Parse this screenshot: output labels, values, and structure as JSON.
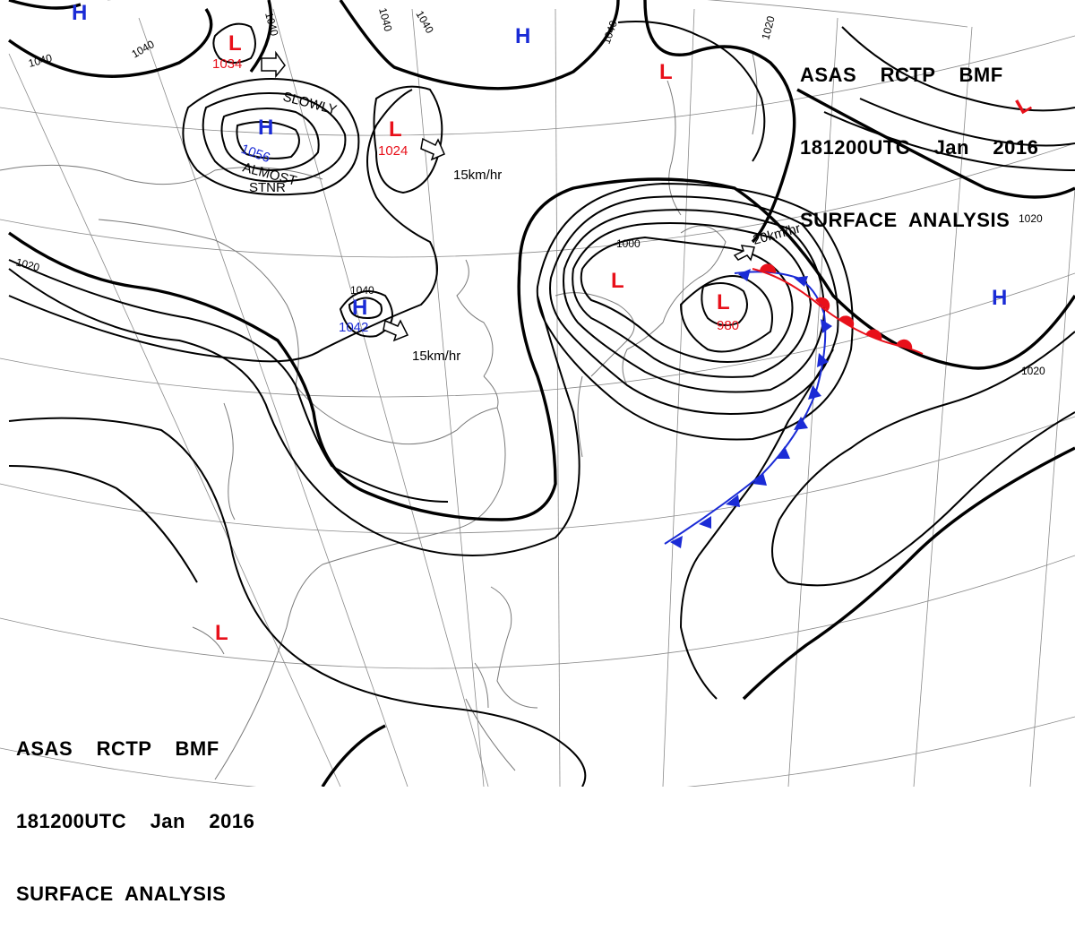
{
  "title_top_right": {
    "line1": "ASAS    RCTP    BMF",
    "line2": "181200UTC    Jan    2016",
    "line3": "SURFACE  ANALYSIS"
  },
  "title_bottom_left": {
    "line1": "ASAS    RCTP    BMF",
    "line2": "181200UTC    Jan    2016",
    "line3": "SURFACE  ANALYSIS"
  },
  "pressure_centers": [
    {
      "type": "H",
      "value": ""
    },
    {
      "type": "L",
      "value": "1034"
    },
    {
      "type": "H",
      "value": ""
    },
    {
      "type": "L",
      "value": ""
    },
    {
      "type": "H",
      "value": "1056"
    },
    {
      "type": "L",
      "value": "1024"
    },
    {
      "type": "L",
      "value": ""
    },
    {
      "type": "H",
      "value": "1042"
    },
    {
      "type": "L",
      "value": ""
    },
    {
      "type": "L",
      "value": "980"
    },
    {
      "type": "H",
      "value": ""
    },
    {
      "type": "L",
      "value": ""
    }
  ],
  "isobar_labels": [
    "1040",
    "1040",
    "1040",
    "1040",
    "1040",
    "1020",
    "1020",
    "1020",
    "1000",
    "1040",
    "1020"
  ],
  "movement_notes": {
    "slowly": "SLOWLY",
    "almost": "ALMOST",
    "stnr": "STNR",
    "speed_1024": "15km/hr",
    "speed_1042": "15km/hr",
    "speed_980": "20km/hr"
  },
  "colors": {
    "high": "#1a2bd6",
    "low": "#e8101a",
    "cold_front": "#1a2bd6",
    "warm_front": "#e8101a",
    "isobar": "#000000",
    "grid": "#8a8a8a"
  }
}
